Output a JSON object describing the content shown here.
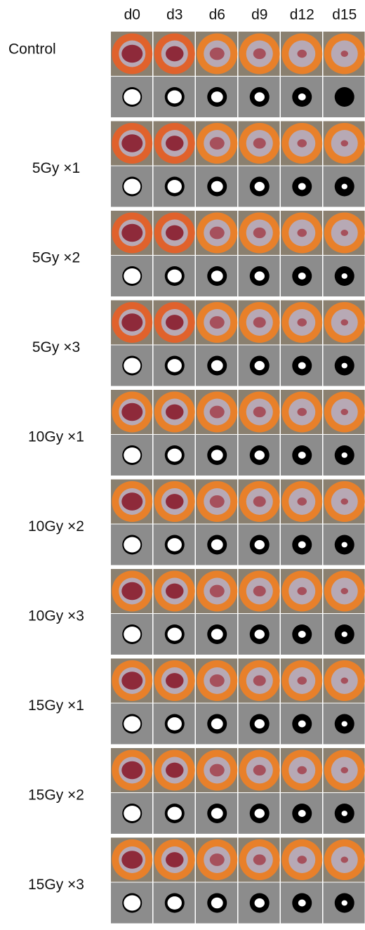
{
  "columns": [
    "d0",
    "d3",
    "d6",
    "d9",
    "d12",
    "d15"
  ],
  "rows": [
    "Control",
    "5Gy ×1",
    "5Gy ×2",
    "5Gy ×3",
    "10Gy ×1",
    "10Gy ×2",
    "10Gy ×3",
    "15Gy ×1",
    "15Gy ×2",
    "15Gy ×3"
  ]
}
